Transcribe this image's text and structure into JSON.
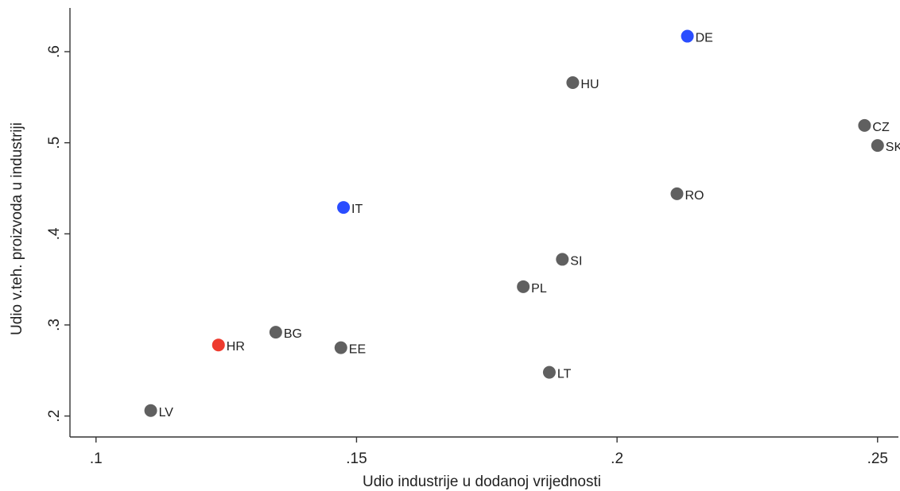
{
  "chart_data": {
    "type": "scatter",
    "title": "",
    "xlabel": "Udio industrije u dodanoj vrijednosti",
    "ylabel": "Udio v.teh. proizvoda u industriji",
    "xlim": [
      0.095,
      0.254
    ],
    "ylim": [
      0.177,
      0.648
    ],
    "x_ticks": [
      {
        "value": 0.1,
        "label": ".1"
      },
      {
        "value": 0.15,
        "label": ".15"
      },
      {
        "value": 0.2,
        "label": ".2"
      },
      {
        "value": 0.25,
        "label": ".25"
      }
    ],
    "y_ticks": [
      {
        "value": 0.2,
        "label": ".2"
      },
      {
        "value": 0.3,
        "label": ".3"
      },
      {
        "value": 0.4,
        "label": ".4"
      },
      {
        "value": 0.5,
        "label": ".5"
      },
      {
        "value": 0.6,
        "label": ".6"
      }
    ],
    "grid": false,
    "legend": "none",
    "colors": {
      "default": "#606060",
      "blue": "#2a4dff",
      "red": "#ee3b2e"
    },
    "points": [
      {
        "label": "DE",
        "x": 0.2135,
        "y": 0.617,
        "color": "blue"
      },
      {
        "label": "HU",
        "x": 0.1915,
        "y": 0.566,
        "color": "default"
      },
      {
        "label": "CZ",
        "x": 0.2475,
        "y": 0.519,
        "color": "default"
      },
      {
        "label": "SK",
        "x": 0.25,
        "y": 0.497,
        "color": "default"
      },
      {
        "label": "RO",
        "x": 0.2115,
        "y": 0.444,
        "color": "default"
      },
      {
        "label": "IT",
        "x": 0.1475,
        "y": 0.429,
        "color": "blue"
      },
      {
        "label": "SI",
        "x": 0.1895,
        "y": 0.372,
        "color": "default"
      },
      {
        "label": "PL",
        "x": 0.182,
        "y": 0.342,
        "color": "default"
      },
      {
        "label": "BG",
        "x": 0.1345,
        "y": 0.292,
        "color": "default"
      },
      {
        "label": "HR",
        "x": 0.1235,
        "y": 0.278,
        "color": "red"
      },
      {
        "label": "EE",
        "x": 0.147,
        "y": 0.275,
        "color": "default"
      },
      {
        "label": "LT",
        "x": 0.187,
        "y": 0.248,
        "color": "default"
      },
      {
        "label": "LV",
        "x": 0.1105,
        "y": 0.206,
        "color": "default"
      }
    ]
  }
}
